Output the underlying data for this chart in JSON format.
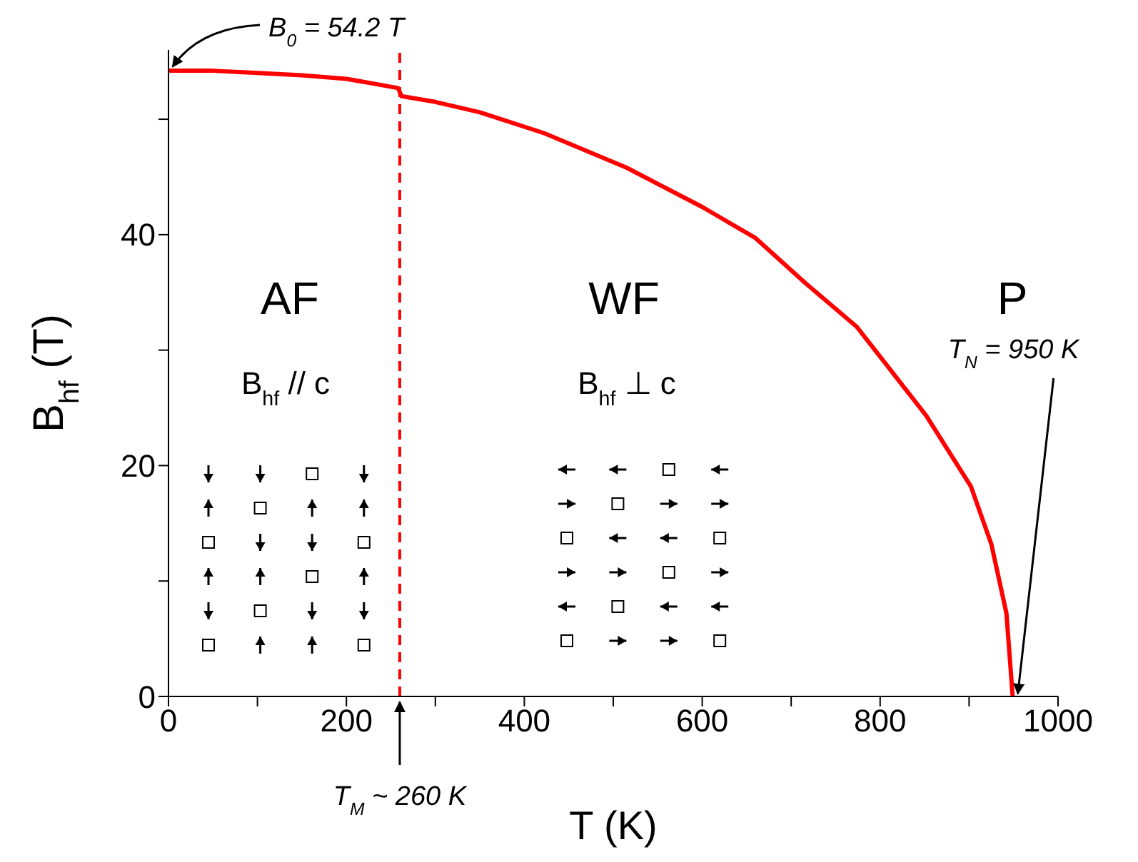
{
  "chart_data": {
    "type": "line",
    "xlabel": "T (K)",
    "ylabel": "B$_{hf}$ (T)",
    "x": [
      0,
      50,
      100,
      150,
      200,
      258,
      262,
      300,
      350,
      422,
      515,
      600,
      660,
      716,
      774,
      852,
      902,
      925,
      942,
      949
    ],
    "series": [
      {
        "color": "#ff0000",
        "values": [
          54.2,
          54.2,
          54.0,
          53.8,
          53.5,
          52.7,
          52.0,
          51.5,
          50.6,
          48.8,
          45.8,
          42.4,
          39.7,
          35.8,
          32.0,
          24.3,
          18.2,
          13.2,
          7.2,
          0
        ]
      }
    ],
    "xlim": [
      0,
      1000
    ],
    "ylim": [
      0,
      56
    ],
    "xticks": [
      0,
      {
        "value": 100,
        "label": null
      },
      200,
      {
        "value": 300,
        "label": null
      },
      400,
      {
        "value": 500,
        "label": null
      },
      600,
      {
        "value": 700,
        "label": null
      },
      800,
      {
        "value": 900,
        "label": null
      },
      1000
    ],
    "yticks": [
      0,
      {
        "value": 10,
        "label": null
      },
      20,
      {
        "value": 30,
        "label": null
      },
      40,
      {
        "value": 50,
        "label": null
      }
    ],
    "marker": "none",
    "line_style": "solid",
    "ref_lines": [
      {
        "axis": "x",
        "value": 260,
        "label": "T$_{M}$ ~ 260 K",
        "color": "#ff0000",
        "line_style": "dashed"
      }
    ],
    "annotations": [
      "AF",
      "WF",
      "P",
      "B$_{hf}$ // c",
      "B$_{hf}$ ⊥ c",
      {
        "text": "B$_{0}$ = 54.2 T",
        "x": 0,
        "y": 54.2
      },
      {
        "text": "T$_{N}$ = 950 K",
        "x": 950,
        "y": 0
      }
    ]
  }
}
